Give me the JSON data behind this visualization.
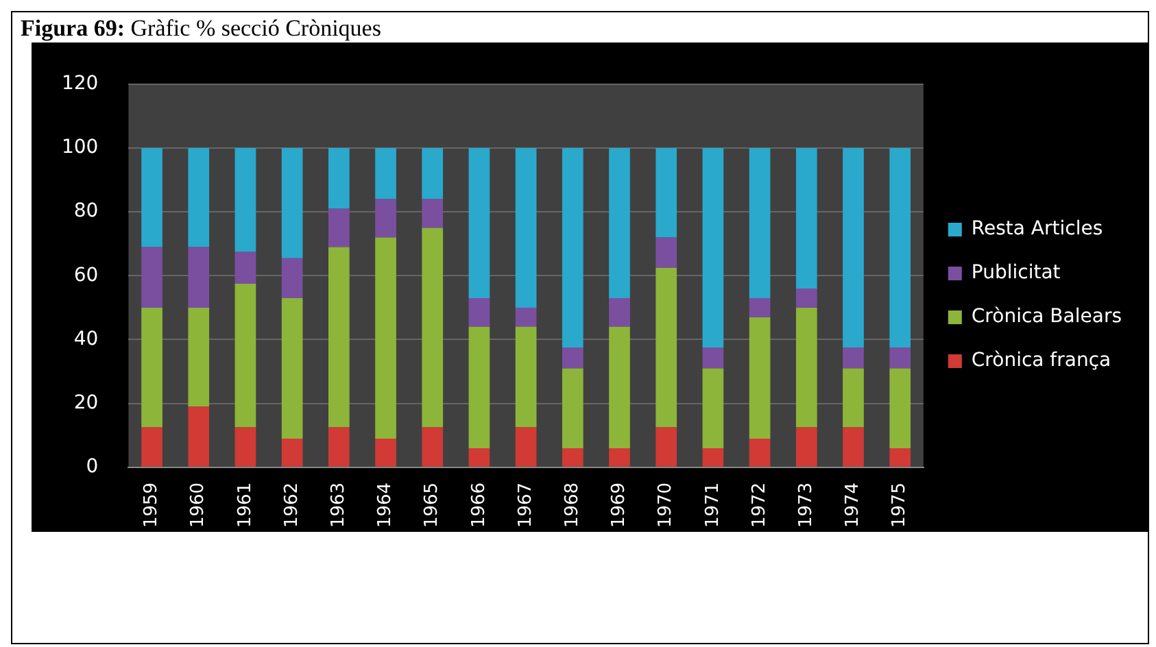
{
  "chart_data": {
    "type": "bar",
    "title": "Figura 69: Gràfic % secció Cròniques",
    "stacked": true,
    "categories": [
      "1959",
      "1960",
      "1961",
      "1962",
      "1963",
      "1964",
      "1965",
      "1966",
      "1967",
      "1968",
      "1969",
      "1970",
      "1971",
      "1972",
      "1973",
      "1974",
      "1975"
    ],
    "series": [
      {
        "name": "Crònica frança",
        "color": "#d13a35",
        "values": [
          12.5,
          19,
          12.5,
          9,
          12.5,
          9,
          12.5,
          6,
          12.5,
          6,
          6,
          12.5,
          6,
          9,
          12.5,
          12.5,
          6
        ]
      },
      {
        "name": "Crònica Balears",
        "color": "#8db53a",
        "values": [
          37.5,
          31,
          45,
          44,
          56.5,
          63,
          62.5,
          38,
          31.5,
          25,
          38,
          50,
          25,
          38,
          37.5,
          18.5,
          25
        ]
      },
      {
        "name": "Publicitat",
        "color": "#7b4fa0",
        "values": [
          19,
          19,
          10,
          12.5,
          12,
          12,
          9,
          9,
          6,
          6.5,
          9,
          9.5,
          6.5,
          6,
          6,
          6.5,
          6.5
        ]
      },
      {
        "name": "Resta Articles",
        "color": "#2aa9cc",
        "values": [
          31,
          31,
          32.5,
          34.5,
          19,
          16,
          16,
          47,
          50,
          62.5,
          47,
          28,
          62.5,
          47,
          44,
          62.5,
          62.5
        ]
      }
    ],
    "ylim": [
      0,
      120
    ],
    "yticks": [
      0,
      20,
      40,
      60,
      80,
      100,
      120
    ],
    "grid": "y",
    "legend": "right"
  }
}
